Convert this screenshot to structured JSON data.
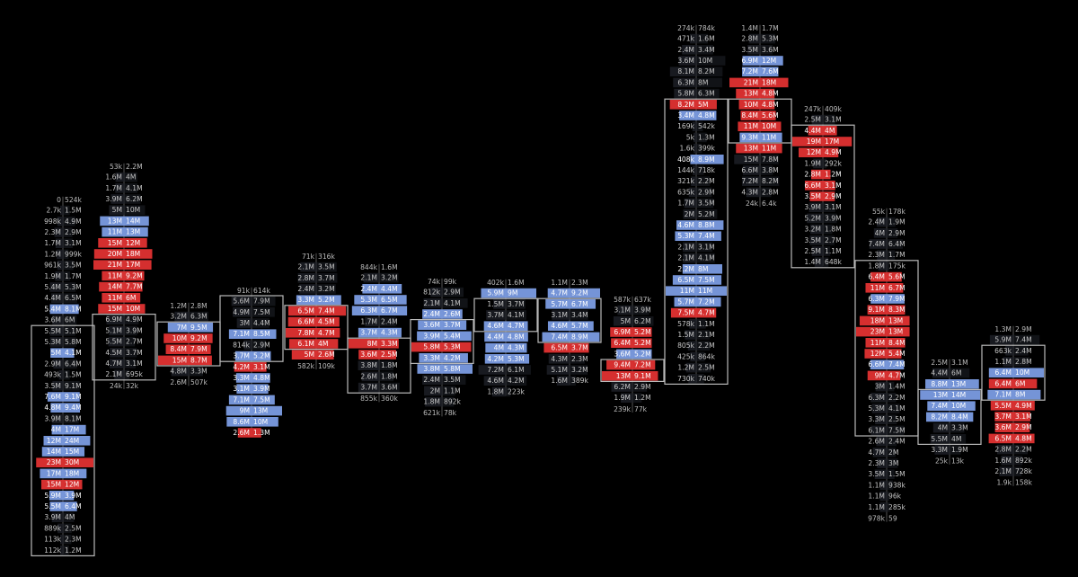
{
  "chart_data": {
    "type": "footprint",
    "colors": {
      "background": "#000000",
      "bid_strong": "#e03131",
      "ask_strong": "#7b9ce3",
      "neutral": "#1c1f26",
      "box": "#b9b9b9",
      "text": "#ffffff",
      "dim_text": "#bdbdbd"
    },
    "candles": [
      {
        "summary": [
          "0",
          "524k"
        ],
        "rows": [
          [
            "2.7k",
            "1.5M"
          ],
          [
            "998k",
            "4.9M"
          ],
          [
            "2.3M",
            "2.9M"
          ],
          [
            "1.7M",
            "3.1M"
          ],
          [
            "1.2M",
            "999k"
          ],
          [
            "961k",
            "3.5M"
          ],
          [
            "1.9M",
            "1.7M"
          ],
          [
            "5.4M",
            "5.3M"
          ],
          [
            "4.4M",
            "6.5M"
          ],
          [
            "5.4M",
            "8.1M",
            "a"
          ],
          [
            "3.6M",
            "6M"
          ],
          [
            "5.5M",
            "5.1M"
          ],
          [
            "5.3M",
            "5.8M"
          ],
          [
            "5M",
            "4.1M",
            "a"
          ],
          [
            "2.9M",
            "6.4M"
          ],
          [
            "493k",
            "1.5M"
          ],
          [
            "3.5M",
            "9.1M"
          ],
          [
            "7.6M",
            "9.1M",
            "a"
          ],
          [
            "4.8M",
            "9.4M",
            "a"
          ],
          [
            "3.9M",
            "8.1M"
          ],
          [
            "4M",
            "17M",
            "a"
          ],
          [
            "12M",
            "24M",
            "a"
          ],
          [
            "14M",
            "15M",
            "a"
          ],
          [
            "23M",
            "30M",
            "b"
          ],
          [
            "17M",
            "18M",
            "a"
          ],
          [
            "15M",
            "12M",
            "b"
          ],
          [
            "5.9M",
            "3.9M",
            "a"
          ],
          [
            "5.5M",
            "6.4M",
            "a"
          ],
          [
            "3.9M",
            "4M"
          ],
          [
            "889k",
            "2.5M"
          ],
          [
            "113k",
            "2.3M"
          ],
          [
            "112k",
            "1.2M"
          ]
        ]
      },
      {
        "summary": [
          "53k",
          "2.2M"
        ],
        "rows": [
          [
            "1.6M",
            "4M"
          ],
          [
            "1.7M",
            "4.1M"
          ],
          [
            "3.9M",
            "6.2M"
          ],
          [
            "5M",
            "10M"
          ],
          [
            "13M",
            "14M",
            "a"
          ],
          [
            "11M",
            "13M",
            "a"
          ],
          [
            "15M",
            "12M",
            "b"
          ],
          [
            "20M",
            "18M",
            "b"
          ],
          [
            "21M",
            "17M",
            "b"
          ],
          [
            "11M",
            "9.2M",
            "b"
          ],
          [
            "14M",
            "7.7M",
            "b"
          ],
          [
            "11M",
            "6M",
            "b"
          ],
          [
            "15M",
            "10M",
            "b"
          ],
          [
            "6.9M",
            "4.9M"
          ],
          [
            "5.1M",
            "3.9M"
          ],
          [
            "5.5M",
            "2.7M"
          ],
          [
            "4.5M",
            "3.7M"
          ],
          [
            "4.7M",
            "3.1M"
          ],
          [
            "2.1M",
            "695k"
          ]
        ],
        "footer": [
          "24k",
          "32k"
        ]
      },
      {
        "summary": [
          "1.2M",
          "2.8M"
        ],
        "rows": [
          [
            "3.2M",
            "6.3M"
          ],
          [
            "7M",
            "9.5M",
            "a"
          ],
          [
            "10M",
            "9.2M",
            "b"
          ],
          [
            "8.4M",
            "7.9M",
            "b"
          ],
          [
            "15M",
            "8.7M",
            "b"
          ],
          [
            "4.8M",
            "3.3M"
          ]
        ],
        "footer": [
          "2.6M",
          "507k"
        ]
      },
      {
        "summary": [
          "91k",
          "614k"
        ],
        "rows": [
          [
            "5.6M",
            "7.9M"
          ],
          [
            "4.9M",
            "7.5M"
          ],
          [
            "3M",
            "4.4M"
          ],
          [
            "7.1M",
            "8.5M",
            "a"
          ],
          [
            "814k",
            "2.9M"
          ],
          [
            "3.7M",
            "5.2M",
            "a"
          ],
          [
            "4.2M",
            "3.1M",
            "b"
          ],
          [
            "3.3M",
            "4.8M",
            "a"
          ],
          [
            "3.1M",
            "3.9M",
            "a"
          ],
          [
            "7.1M",
            "7.5M",
            "a"
          ],
          [
            "9M",
            "13M",
            "a"
          ],
          [
            "8.6M",
            "10M",
            "a"
          ],
          [
            "2.6M",
            "1.3M",
            "b"
          ]
        ]
      },
      {
        "summary": [
          "71k",
          "316k"
        ],
        "rows": [
          [
            "2.1M",
            "3.5M"
          ],
          [
            "2.8M",
            "3.7M"
          ],
          [
            "2.4M",
            "3.2M"
          ],
          [
            "3.3M",
            "5.2M",
            "a"
          ],
          [
            "6.5M",
            "7.4M",
            "b"
          ],
          [
            "6.6M",
            "4.5M",
            "b"
          ],
          [
            "7.8M",
            "4.7M",
            "b"
          ],
          [
            "6.1M",
            "4M",
            "b"
          ],
          [
            "5M",
            "2.6M",
            "b"
          ]
        ],
        "footer": [
          "582k",
          "109k"
        ]
      },
      {
        "summary": [
          "844k",
          "1.6M"
        ],
        "rows": [
          [
            "2.1M",
            "3.2M"
          ],
          [
            "2.4M",
            "4.4M",
            "a"
          ],
          [
            "5.3M",
            "6.5M",
            "a"
          ],
          [
            "6.3M",
            "6.7M",
            "a"
          ],
          [
            "1.7M",
            "2.4M"
          ],
          [
            "3.7M",
            "4.3M",
            "a"
          ],
          [
            "8M",
            "3.3M",
            "b"
          ],
          [
            "3.6M",
            "2.5M",
            "b"
          ],
          [
            "3.8M",
            "1.8M"
          ],
          [
            "2.6M",
            "1.8M"
          ],
          [
            "3.7M",
            "3.6M"
          ]
        ],
        "footer": [
          "855k",
          "360k"
        ]
      },
      {
        "summary": [
          "74k",
          "99k"
        ],
        "rows": [
          [
            "812k",
            "2.9M"
          ],
          [
            "2.1M",
            "4.1M"
          ],
          [
            "2.4M",
            "2.6M",
            "a"
          ],
          [
            "3.6M",
            "3.7M",
            "a"
          ],
          [
            "3.9M",
            "5.4M",
            "a"
          ],
          [
            "5.8M",
            "5.3M",
            "b"
          ],
          [
            "3.3M",
            "4.2M",
            "a"
          ],
          [
            "3.8M",
            "5.8M",
            "a"
          ],
          [
            "2.4M",
            "3.5M"
          ],
          [
            "2M",
            "1.1M"
          ],
          [
            "1.8M",
            "892k"
          ]
        ],
        "footer": [
          "621k",
          "78k"
        ]
      },
      {
        "summary": [
          "402k",
          "1.6M"
        ],
        "rows": [
          [
            "5.9M",
            "9M",
            "a"
          ],
          [
            "1.5M",
            "3.7M"
          ],
          [
            "3.7M",
            "4.1M"
          ],
          [
            "4.6M",
            "4.7M",
            "a"
          ],
          [
            "4.4M",
            "4.8M",
            "a"
          ],
          [
            "4M",
            "4.3M",
            "a"
          ],
          [
            "4.2M",
            "5.3M",
            "a"
          ],
          [
            "7.2M",
            "6.1M"
          ],
          [
            "4.6M",
            "4.2M"
          ],
          [
            "1.8M",
            "223k"
          ]
        ]
      },
      {
        "summary": [
          "1.1M",
          "2.3M"
        ],
        "rows": [
          [
            "4.7M",
            "9.2M",
            "a"
          ],
          [
            "5.7M",
            "6.7M",
            "a"
          ],
          [
            "3.1M",
            "3.4M"
          ],
          [
            "4.6M",
            "5.7M",
            "a"
          ],
          [
            "7.4M",
            "8.9M",
            "a"
          ],
          [
            "6.5M",
            "3.7M",
            "b"
          ],
          [
            "4.3M",
            "2.3M"
          ],
          [
            "5.1M",
            "3.2M"
          ],
          [
            "1.6M",
            "389k"
          ]
        ]
      },
      {
        "summary": [
          "587k",
          "637k"
        ],
        "rows": [
          [
            "3.1M",
            "3.9M"
          ],
          [
            "5M",
            "6.2M"
          ],
          [
            "6.9M",
            "5.2M",
            "b"
          ],
          [
            "6.4M",
            "5.2M",
            "b"
          ],
          [
            "3.6M",
            "5.2M",
            "a"
          ],
          [
            "9.4M",
            "7.2M",
            "b"
          ],
          [
            "13M",
            "9.1M",
            "b"
          ],
          [
            "6.2M",
            "2.9M"
          ],
          [
            "1.9M",
            "1.2M"
          ]
        ],
        "footer": [
          "239k",
          "77k"
        ]
      },
      {
        "summary": [
          "274k",
          "784k"
        ],
        "rows": [
          [
            "471k",
            "1.6M"
          ],
          [
            "2.4M",
            "3.4M"
          ],
          [
            "3.6M",
            "10M"
          ],
          [
            "8.1M",
            "8.2M"
          ],
          [
            "6.3M",
            "8M"
          ],
          [
            "5.8M",
            "6.3M"
          ],
          [
            "8.2M",
            "5M",
            "b"
          ],
          [
            "3.4M",
            "4.8M",
            "a"
          ],
          [
            "169k",
            "542k"
          ],
          [
            "5k",
            "1.3M"
          ],
          [
            "1.6k",
            "399k"
          ],
          [
            "408k",
            "8.9M",
            "a"
          ],
          [
            "144k",
            "718k"
          ],
          [
            "321k",
            "2.2M"
          ],
          [
            "635k",
            "2.9M"
          ],
          [
            "1.7M",
            "3.5M"
          ],
          [
            "2M",
            "5.2M"
          ],
          [
            "4.6M",
            "8.8M",
            "a"
          ],
          [
            "5.3M",
            "7.4M",
            "a"
          ],
          [
            "2.1M",
            "3.1M"
          ],
          [
            "2.1M",
            "4.1M"
          ],
          [
            "2.2M",
            "8M",
            "a"
          ],
          [
            "6.5M",
            "7.5M",
            "a"
          ],
          [
            "11M",
            "11M",
            "a"
          ],
          [
            "5.7M",
            "7.2M",
            "a"
          ],
          [
            "7.5M",
            "4.7M",
            "b"
          ],
          [
            "578k",
            "1.1M"
          ],
          [
            "1.5M",
            "2.1M"
          ],
          [
            "805k",
            "2.2M"
          ],
          [
            "425k",
            "864k"
          ],
          [
            "1.2M",
            "2.5M"
          ],
          [
            "730k",
            "740k"
          ]
        ]
      },
      {
        "summary": [
          "1.4M",
          "1.7M"
        ],
        "rows": [
          [
            "2.8M",
            "5.3M"
          ],
          [
            "3.5M",
            "3.6M"
          ],
          [
            "6.9M",
            "12M",
            "a"
          ],
          [
            "7.2M",
            "7.6M",
            "a"
          ],
          [
            "21M",
            "18M",
            "b"
          ],
          [
            "13M",
            "4.8M",
            "b"
          ],
          [
            "10M",
            "4.8M",
            "b"
          ],
          [
            "8.4M",
            "5.6M",
            "b"
          ],
          [
            "11M",
            "10M",
            "b"
          ],
          [
            "9.3M",
            "11M",
            "a"
          ],
          [
            "13M",
            "11M",
            "b"
          ],
          [
            "15M",
            "7.8M"
          ],
          [
            "6.6M",
            "3.8M"
          ],
          [
            "7.2M",
            "8.2M"
          ],
          [
            "4.3M",
            "2.8M"
          ]
        ],
        "footer": [
          "24k",
          "6.4k"
        ]
      },
      {
        "summary": [
          "247k",
          "409k"
        ],
        "rows": [
          [
            "2.5M",
            "3.1M"
          ],
          [
            "4.4M",
            "4M",
            "b"
          ],
          [
            "19M",
            "17M",
            "b"
          ],
          [
            "12M",
            "4.9M",
            "b"
          ],
          [
            "1.9M",
            "292k"
          ],
          [
            "2.8M",
            "1.2M",
            "b"
          ],
          [
            "6.6M",
            "3.1M",
            "b"
          ],
          [
            "3.5M",
            "2.9M",
            "b"
          ],
          [
            "3.9M",
            "3.1M"
          ],
          [
            "5.2M",
            "3.9M"
          ],
          [
            "3.2M",
            "1.8M"
          ],
          [
            "3.5M",
            "2.7M"
          ],
          [
            "2.5M",
            "1.1M"
          ],
          [
            "1.4M",
            "648k"
          ]
        ]
      },
      {
        "summary": [
          "55k",
          "178k"
        ],
        "rows": [
          [
            "2.4M",
            "1.9M"
          ],
          [
            "4M",
            "2.9M"
          ],
          [
            "7.4M",
            "6.4M"
          ],
          [
            "2.3M",
            "1.7M"
          ],
          [
            "1.8M",
            "175k"
          ],
          [
            "6.4M",
            "5.6M",
            "b"
          ],
          [
            "11M",
            "6.7M",
            "b"
          ],
          [
            "6.3M",
            "7.9M",
            "a"
          ],
          [
            "9.1M",
            "8.3M",
            "b"
          ],
          [
            "18M",
            "13M",
            "b"
          ],
          [
            "23M",
            "13M",
            "b"
          ],
          [
            "11M",
            "8.4M",
            "b"
          ],
          [
            "12M",
            "5.4M",
            "b"
          ],
          [
            "6.6M",
            "7.4M",
            "a"
          ],
          [
            "9M",
            "4.7M",
            "b"
          ],
          [
            "3M",
            "1.4M"
          ],
          [
            "6.3M",
            "2.2M"
          ],
          [
            "5.3M",
            "4.1M"
          ],
          [
            "3.3M",
            "2.5M"
          ],
          [
            "6.1M",
            "7.5M"
          ],
          [
            "2.6M",
            "2.4M"
          ],
          [
            "4.7M",
            "2M"
          ],
          [
            "2.3M",
            "3M"
          ],
          [
            "3.5M",
            "1.5M"
          ],
          [
            "1.1M",
            "938k"
          ],
          [
            "1.1M",
            "96k"
          ],
          [
            "1.1M",
            "285k"
          ]
        ],
        "footer": [
          "978k",
          "59"
        ]
      },
      {
        "summary": [
          "2.5M",
          "3.1M"
        ],
        "rows": [
          [
            "4.4M",
            "6M"
          ],
          [
            "8.8M",
            "13M",
            "a"
          ],
          [
            "13M",
            "14M",
            "a"
          ],
          [
            "7.4M",
            "10M",
            "a"
          ],
          [
            "8.2M",
            "8.4M",
            "a"
          ],
          [
            "4M",
            "3.3M"
          ],
          [
            "5.5M",
            "4M"
          ],
          [
            "3.3M",
            "1.9M"
          ]
        ],
        "footer": [
          "25k",
          "13k"
        ]
      },
      {
        "summary": [
          "1.3M",
          "2.9M"
        ],
        "rows": [
          [
            "5.9M",
            "7.4M"
          ],
          [
            "663k",
            "2.4M"
          ],
          [
            "1.1M",
            "2.8M"
          ],
          [
            "6.4M",
            "10M",
            "a"
          ],
          [
            "6.4M",
            "6M",
            "b"
          ],
          [
            "7.1M",
            "8M",
            "a"
          ],
          [
            "5.5M",
            "4.9M",
            "b"
          ],
          [
            "3.7M",
            "3.1M",
            "b"
          ],
          [
            "3.6M",
            "2.9M",
            "b"
          ],
          [
            "6.5M",
            "4.8M",
            "b"
          ],
          [
            "2.8M",
            "2.2M"
          ],
          [
            "1.6M",
            "892k"
          ],
          [
            "2.1M",
            "728k"
          ]
        ],
        "footer": [
          "1.9k",
          "158k"
        ]
      }
    ]
  }
}
